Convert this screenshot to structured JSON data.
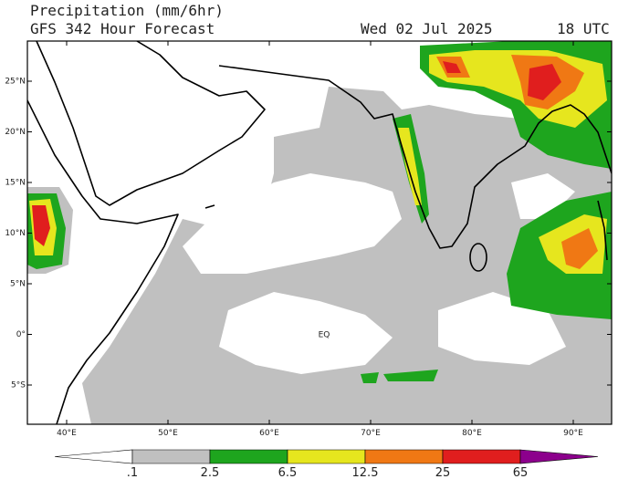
{
  "header": {
    "title": "Precipitation (mm/6hr)",
    "subtitle": "GFS 342 Hour Forecast",
    "date": "Wed 02 Jul 2025",
    "time": "18 UTC"
  },
  "map": {
    "lat_labels": [
      "25°N",
      "20°N",
      "15°N",
      "10°N",
      "5°N",
      "0°",
      "5°S"
    ],
    "lon_labels": [
      "40°E",
      "50°E",
      "60°E",
      "70°E",
      "80°E",
      "90°E"
    ],
    "equator_label": "EQ"
  },
  "colorbar": {
    "labels": [
      ".1",
      "2.5",
      "6.5",
      "12.5",
      "25",
      "65"
    ],
    "colors": [
      "#ffffff",
      "#c0c0c0",
      "#1ea51e",
      "#e6e61e",
      "#f07814",
      "#e01e1e",
      "#8c008c"
    ]
  }
}
